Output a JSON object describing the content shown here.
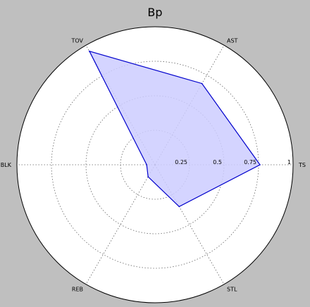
{
  "colors": {
    "figure_background": "#bfbfbf",
    "plot_background": "#ffffff",
    "series_line": "#0000cc",
    "series_fill": "#ccccff",
    "grid": "#666666"
  },
  "chart_data": {
    "type": "radar",
    "title": "Bp",
    "axes": [
      "TS",
      "AST",
      "TOV",
      "BLK",
      "REB",
      "STL"
    ],
    "rlim": [
      0,
      1
    ],
    "r_ticks": [
      0.25,
      0.5,
      0.75,
      1
    ],
    "r_tick_labels": [
      "0.25",
      "0.5",
      "0.75",
      "1"
    ],
    "grid": true,
    "series": [
      {
        "values": [
          0.76,
          0.68,
          0.95,
          0.06,
          0.1,
          0.35
        ]
      }
    ]
  }
}
